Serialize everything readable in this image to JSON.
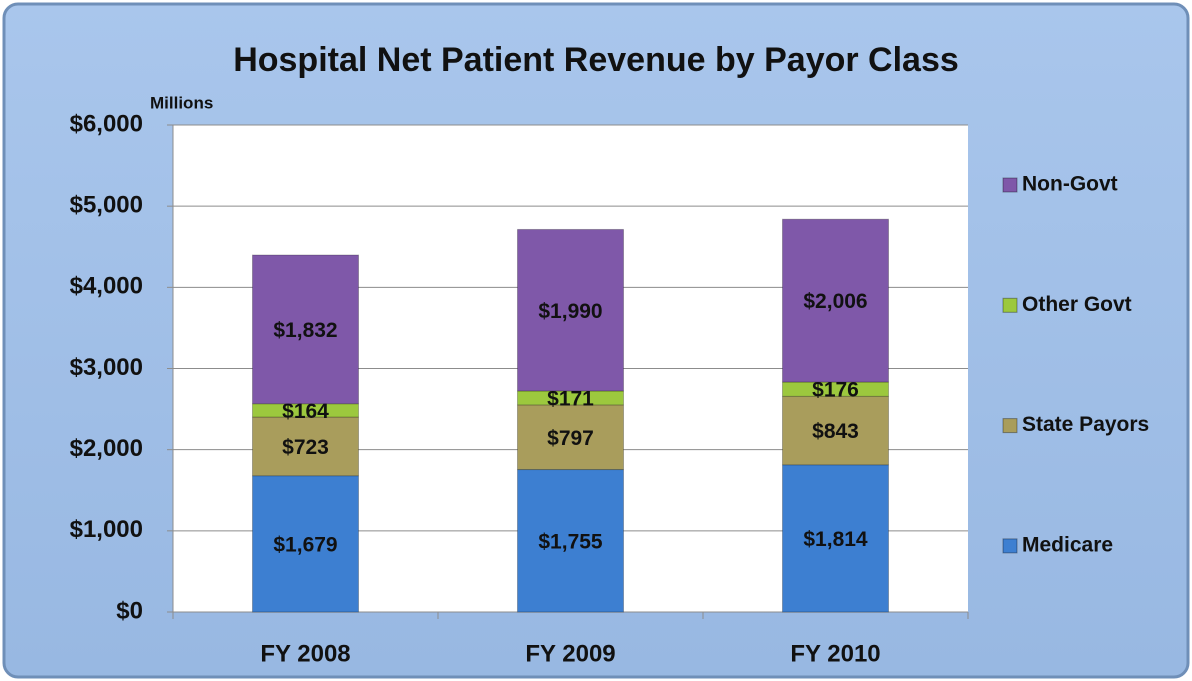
{
  "chart_data": {
    "type": "stacked_bar",
    "title": "Hospital Net Patient Revenue by Payor Class",
    "y_axis_label": "Millions",
    "categories": [
      "FY 2008",
      "FY 2009",
      "FY 2010"
    ],
    "series": [
      {
        "name": "Medicare",
        "color": "#3d7fd1",
        "values": [
          1679,
          1755,
          1814
        ],
        "value_labels": [
          "$1,679",
          "$1,755",
          "$1,814"
        ]
      },
      {
        "name": "State Payors",
        "color": "#a99d5c",
        "values": [
          723,
          797,
          843
        ],
        "value_labels": [
          "$723",
          "$797",
          "$843"
        ]
      },
      {
        "name": "Other Govt",
        "color": "#9cc83e",
        "values": [
          164,
          171,
          176
        ],
        "value_labels": [
          "$164",
          "$171",
          "$176"
        ]
      },
      {
        "name": "Non-Govt",
        "color": "#7f58a9",
        "values": [
          1832,
          1990,
          2006
        ],
        "value_labels": [
          "$1,832",
          "$1,990",
          "$2,006"
        ]
      }
    ],
    "ylim": [
      0,
      6000
    ],
    "yticks": [
      {
        "value": 0,
        "label": "$0"
      },
      {
        "value": 1000,
        "label": "$1,000"
      },
      {
        "value": 2000,
        "label": "$2,000"
      },
      {
        "value": 3000,
        "label": "$3,000"
      },
      {
        "value": 4000,
        "label": "$4,000"
      },
      {
        "value": 5000,
        "label": "$5,000"
      },
      {
        "value": 6000,
        "label": "$6,000"
      }
    ],
    "grid": true,
    "legend": "right"
  }
}
